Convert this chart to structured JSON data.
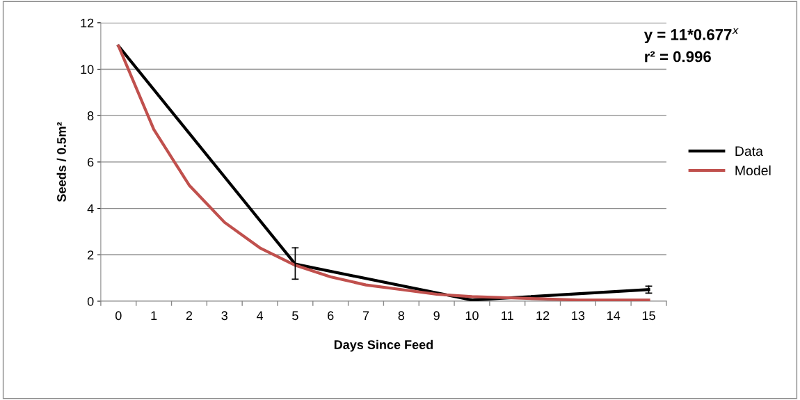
{
  "chart_data": {
    "type": "line",
    "xlabel": "Days Since Feed",
    "ylabel": "Seeds / 0.5m²",
    "categories": [
      "0",
      "1",
      "2",
      "3",
      "4",
      "5",
      "6",
      "7",
      "8",
      "9",
      "10",
      "11",
      "12",
      "13",
      "14",
      "15"
    ],
    "series": [
      {
        "name": "Data",
        "color": "#000000",
        "values": [
          11,
          null,
          null,
          null,
          null,
          1.6,
          null,
          null,
          null,
          null,
          0.05,
          null,
          null,
          null,
          null,
          0.5
        ],
        "errors": [
          null,
          null,
          null,
          null,
          null,
          [
            0.95,
            2.3
          ],
          null,
          null,
          null,
          null,
          null,
          null,
          null,
          null,
          null,
          [
            0.35,
            0.65
          ]
        ]
      },
      {
        "name": "Model",
        "color": "#c0504d",
        "values": [
          11,
          7.4,
          5.0,
          3.4,
          2.3,
          1.55,
          1.05,
          0.7,
          0.5,
          0.3,
          0.2,
          0.15,
          0.1,
          0.05,
          0.05,
          0.05
        ]
      }
    ],
    "ylim": [
      0,
      12
    ],
    "yticks": [
      0,
      2,
      4,
      6,
      8,
      10,
      12
    ],
    "grid": "y",
    "legend": "right",
    "marker": "none",
    "line_style": "solid",
    "annotations": [
      "y = 11*0.677$^{x}$",
      "r² = 0.996"
    ]
  }
}
